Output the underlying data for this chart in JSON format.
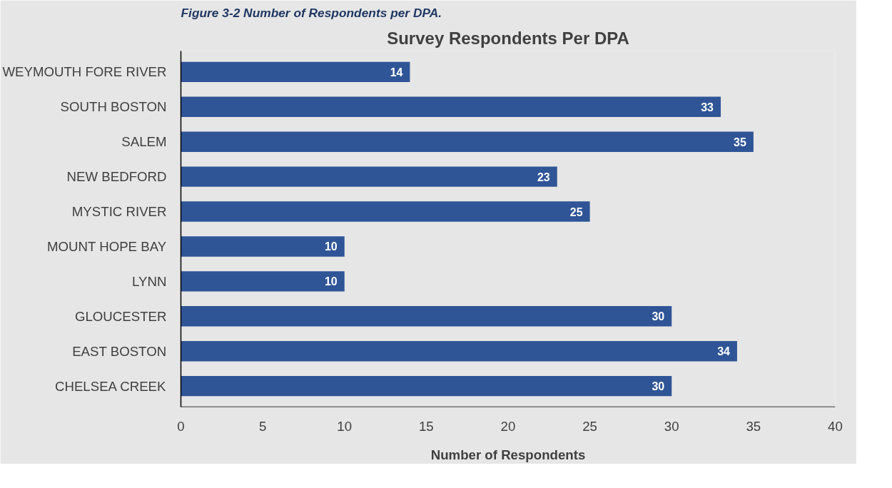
{
  "chart_data": {
    "type": "bar",
    "orientation": "horizontal",
    "title": "Survey Respondents Per DPA",
    "xlabel": "Number of Respondents",
    "annotations": [
      "Figure 3-2 Number of Respondents per DPA."
    ],
    "categories": [
      "WEYMOUTH FORE RIVER",
      "SOUTH BOSTON",
      "SALEM",
      "NEW BEDFORD",
      "MYSTIC RIVER",
      "MOUNT HOPE BAY",
      "LYNN",
      "GLOUCESTER",
      "EAST BOSTON",
      "CHELSEA CREEK"
    ],
    "values": [
      14,
      33,
      35,
      23,
      25,
      10,
      10,
      30,
      34,
      30
    ],
    "color": "#2f5597",
    "xlim": [
      0,
      40
    ],
    "xticks": [
      0,
      5,
      10,
      15,
      20,
      25,
      30,
      35,
      40
    ],
    "data_labels": true
  }
}
